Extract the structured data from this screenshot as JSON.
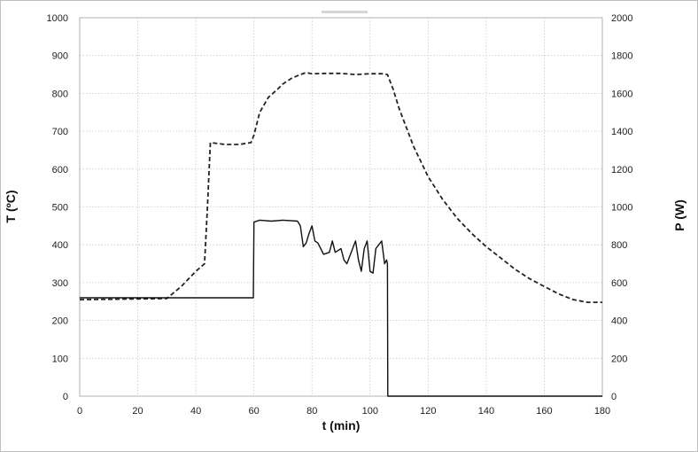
{
  "chart_data": {
    "type": "line",
    "xlabel": "t (min)",
    "ylabel": "T (ºC)",
    "y2label": "P (W)",
    "xlim": [
      0,
      180
    ],
    "ylim": [
      0,
      1000
    ],
    "y2lim": [
      0,
      2000
    ],
    "x_ticks": [
      0,
      20,
      40,
      60,
      80,
      100,
      120,
      140,
      160,
      180
    ],
    "y_ticks": [
      0,
      100,
      200,
      300,
      400,
      500,
      600,
      700,
      800,
      900,
      1000
    ],
    "y2_ticks": [
      0,
      200,
      400,
      600,
      800,
      1000,
      1200,
      1400,
      1600,
      1800,
      2000
    ],
    "grid": true,
    "legend": "none",
    "series": [
      {
        "axis": "left",
        "style": "dashed",
        "color": "#222222",
        "x": [
          0,
          30,
          35,
          40,
          43,
          44,
          45,
          50,
          55,
          59,
          60,
          62,
          65,
          68,
          70,
          73,
          76,
          78,
          80,
          85,
          90,
          95,
          100,
          104,
          106,
          108,
          110,
          115,
          120,
          125,
          130,
          135,
          140,
          145,
          150,
          155,
          160,
          165,
          170,
          175,
          180
        ],
        "y": [
          255,
          258,
          290,
          330,
          350,
          500,
          670,
          665,
          665,
          670,
          690,
          750,
          790,
          810,
          825,
          840,
          850,
          855,
          852,
          853,
          853,
          850,
          852,
          852,
          850,
          810,
          760,
          660,
          580,
          520,
          470,
          430,
          395,
          365,
          335,
          310,
          290,
          270,
          255,
          248,
          248
        ]
      },
      {
        "axis": "right",
        "style": "solid",
        "color": "#111111",
        "x": [
          0,
          20,
          40,
          59.8,
          60,
          62,
          66,
          70,
          75,
          76,
          77,
          78,
          79,
          80,
          81,
          82,
          83,
          84,
          86,
          87,
          88,
          90,
          91,
          92,
          94,
          95,
          96,
          97,
          98,
          99,
          100,
          101,
          102,
          103,
          104,
          105,
          105.7,
          106,
          106.1,
          180
        ],
        "y": [
          520,
          520,
          520,
          520,
          920,
          930,
          925,
          930,
          925,
          900,
          790,
          810,
          860,
          900,
          820,
          810,
          780,
          750,
          760,
          820,
          760,
          780,
          720,
          700,
          780,
          820,
          720,
          660,
          780,
          820,
          660,
          650,
          780,
          800,
          820,
          700,
          720,
          700,
          0,
          0
        ]
      }
    ]
  }
}
